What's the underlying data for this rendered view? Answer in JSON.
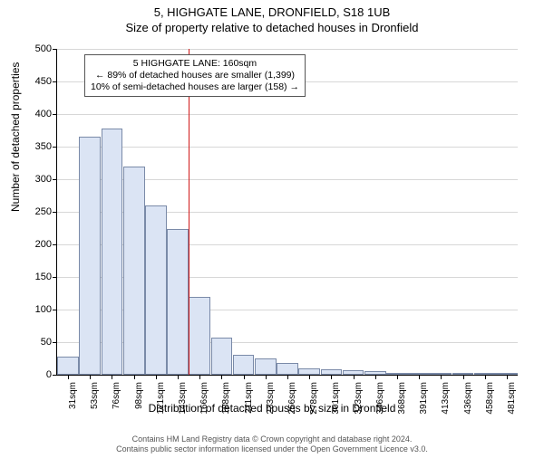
{
  "title_line1": "5, HIGHGATE LANE, DRONFIELD, S18 1UB",
  "title_line2": "Size of property relative to detached houses in Dronfield",
  "y_axis_label": "Number of detached properties",
  "x_axis_label": "Distribution of detached houses by size in Dronfield",
  "chart": {
    "type": "histogram",
    "y_max": 500,
    "y_ticks": [
      0,
      50,
      100,
      150,
      200,
      250,
      300,
      350,
      400,
      450,
      500
    ],
    "x_labels": [
      "31sqm",
      "53sqm",
      "76sqm",
      "98sqm",
      "121sqm",
      "143sqm",
      "166sqm",
      "188sqm",
      "211sqm",
      "233sqm",
      "256sqm",
      "278sqm",
      "301sqm",
      "323sqm",
      "346sqm",
      "368sqm",
      "391sqm",
      "413sqm",
      "436sqm",
      "458sqm",
      "481sqm"
    ],
    "values": [
      28,
      365,
      378,
      320,
      260,
      223,
      120,
      57,
      30,
      25,
      18,
      10,
      8,
      7,
      5,
      3,
      3,
      3,
      2,
      2,
      2
    ],
    "bar_fill": "#dbe4f4",
    "bar_stroke": "#7a8aa8",
    "grid_color": "#d7d7d7",
    "background": "#ffffff",
    "reference_line": {
      "color": "#d11919",
      "x_index_after_bar": 5
    }
  },
  "annotation": {
    "line1": "5 HIGHGATE LANE: 160sqm",
    "line2": "← 89% of detached houses are smaller (1,399)",
    "line3": "10% of semi-detached houses are larger (158) →"
  },
  "footer_line1": "Contains HM Land Registry data © Crown copyright and database right 2024.",
  "footer_line2": "Contains public sector information licensed under the Open Government Licence v3.0."
}
